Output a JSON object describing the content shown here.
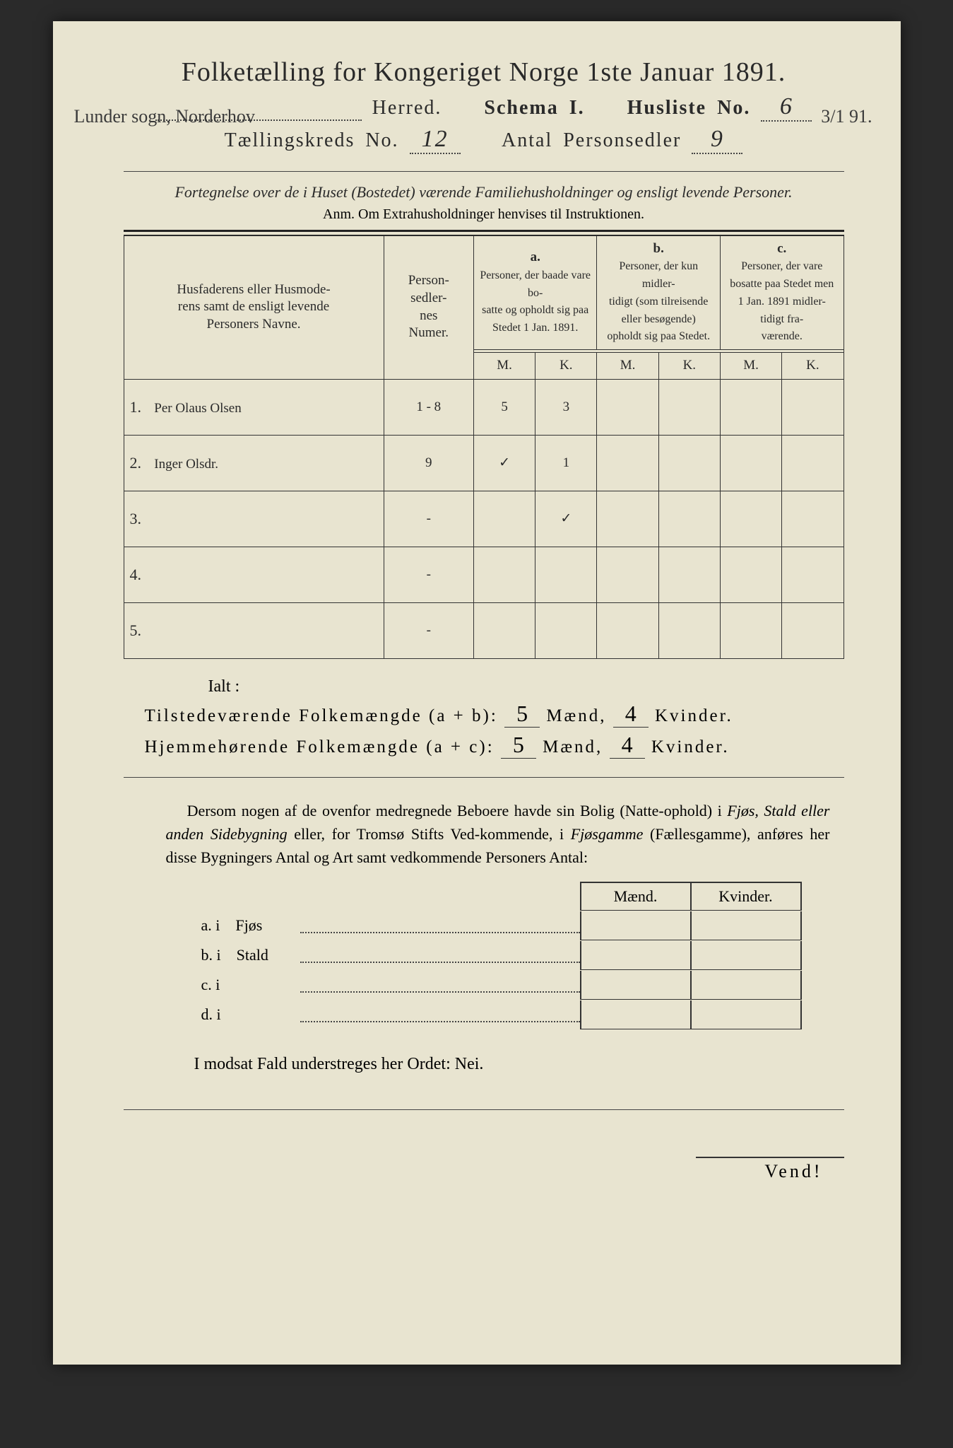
{
  "title": "Folketælling for Kongeriget Norge 1ste Januar 1891.",
  "margin_left_hand": "Lunder sogn, Norderhov",
  "margin_right_hand": "3/1 91.",
  "line2": {
    "herred_label": "Herred.",
    "schema_label": "Schema I.",
    "husliste_label": "Husliste No.",
    "husliste_val": "6"
  },
  "line3": {
    "kreds_label": "Tællingskreds No.",
    "kreds_val": "12",
    "antal_label": "Antal Personsedler",
    "antal_val": "9"
  },
  "instruction": "Fortegnelse over de i Huset (Bostedet) værende Familiehusholdninger og ensligt levende Personer.",
  "anm": "Anm.  Om Extrahusholdninger henvises til Instruktionen.",
  "table": {
    "col_name": "Husfaderens eller Husmode-\nrens samt de ensligt levende\nPersoners Navne.",
    "col_num": "Person-\nsedler-\nnes\nNumer.",
    "grp_a_label": "a.",
    "grp_a_text": "Personer, der baade vare bo-\nsatte og opholdt sig paa Stedet 1 Jan. 1891.",
    "grp_b_label": "b.",
    "grp_b_text": "Personer, der kun midler-\ntidigt (som tilreisende eller besøgende) opholdt sig paa Stedet.",
    "grp_c_label": "c.",
    "grp_c_text": "Personer, der vare bosatte paa Stedet men 1 Jan. 1891 midler-\ntidigt fra-\nværende.",
    "M": "M.",
    "K": "K.",
    "rows": [
      {
        "n": "1.",
        "name": "Per Olaus Olsen",
        "num": "1 - 8",
        "aM": "5",
        "aK": "3",
        "bM": "",
        "bK": "",
        "cM": "",
        "cK": ""
      },
      {
        "n": "2.",
        "name": "Inger Olsdr.",
        "num": "9",
        "aM": "✓",
        "aK": "1",
        "bM": "",
        "bK": "",
        "cM": "",
        "cK": ""
      },
      {
        "n": "3.",
        "name": "",
        "num": "-",
        "aM": "",
        "aK": "✓",
        "bM": "",
        "bK": "",
        "cM": "",
        "cK": ""
      },
      {
        "n": "4.",
        "name": "",
        "num": "-",
        "aM": "",
        "aK": "",
        "bM": "",
        "bK": "",
        "cM": "",
        "cK": ""
      },
      {
        "n": "5.",
        "name": "",
        "num": "-",
        "aM": "",
        "aK": "",
        "bM": "",
        "bK": "",
        "cM": "",
        "cK": ""
      }
    ]
  },
  "ialt": "Ialt :",
  "totals_present": {
    "label": "Tilstedeværende Folkemængde (a + b):",
    "maend": "5",
    "kvinder": "4",
    "m_lbl": "Mænd,",
    "k_lbl": "Kvinder."
  },
  "totals_home": {
    "label": "Hjemmehørende Folkemængde (a + c):",
    "maend": "5",
    "kvinder": "4",
    "m_lbl": "Mænd,",
    "k_lbl": "Kvinder."
  },
  "para": "Dersom nogen af de ovenfor medregnede Beboere havde sin Bolig (Natte-ophold) i Fjøs, Stald eller anden Sidebygning eller, for Tromsø Stifts Ved-kommende, i Fjøsgamme (Fællesgamme), anføres her disse Bygningers Antal og Art samt vedkommende Personers Antal:",
  "sub_header": {
    "m": "Mænd.",
    "k": "Kvinder."
  },
  "sub_rows": [
    {
      "lead": "a.  i",
      "label": "Fjøs"
    },
    {
      "lead": "b.  i",
      "label": "Stald"
    },
    {
      "lead": "c.  i",
      "label": ""
    },
    {
      "lead": "d.  i",
      "label": ""
    }
  ],
  "nei": "I modsat Fald understreges her Ordet: Nei.",
  "vend": "Vend!",
  "colors": {
    "paper": "#e8e4d0",
    "ink": "#2a2a2a",
    "border": "#333333"
  }
}
